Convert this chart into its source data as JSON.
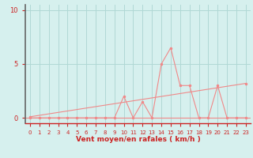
{
  "title": "",
  "xlabel": "Vent moyen/en rafales ( km/h )",
  "ylabel": "",
  "bg_color": "#d6f0ee",
  "grid_color": "#b0d8d5",
  "line_color": "#f08888",
  "marker_color": "#f08888",
  "xlim": [
    -0.5,
    23.5
  ],
  "ylim": [
    -0.5,
    10.5
  ],
  "xticks": [
    0,
    1,
    2,
    3,
    4,
    5,
    6,
    7,
    8,
    9,
    10,
    11,
    12,
    13,
    14,
    15,
    16,
    17,
    18,
    19,
    20,
    21,
    22,
    23
  ],
  "yticks": [
    0,
    5,
    10
  ],
  "data_x": [
    0,
    1,
    2,
    3,
    4,
    5,
    6,
    7,
    8,
    9,
    10,
    11,
    12,
    13,
    14,
    15,
    16,
    17,
    18,
    19,
    20,
    21,
    22,
    23
  ],
  "data_y": [
    0,
    0,
    0,
    0,
    0,
    0,
    0,
    0,
    0,
    0,
    2,
    0,
    1.5,
    0,
    5,
    6.5,
    3,
    3,
    0,
    0,
    3,
    0,
    0,
    0
  ],
  "trend_x": [
    0,
    23
  ],
  "trend_y": [
    0.1,
    3.2
  ],
  "left_spine_color": "#666666",
  "tick_color": "#cc2222",
  "xlabel_color": "#cc2222"
}
